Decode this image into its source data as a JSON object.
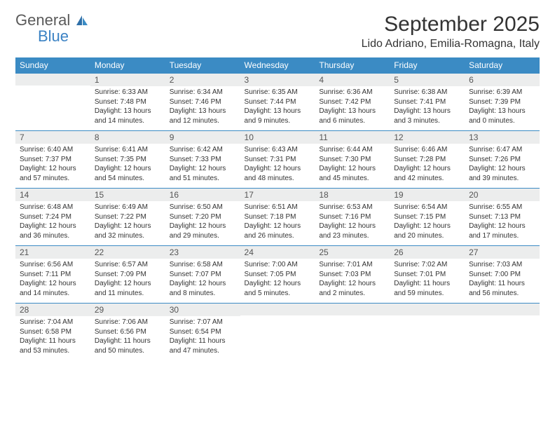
{
  "logo": {
    "general": "General",
    "blue": "Blue"
  },
  "title": "September 2025",
  "location": "Lido Adriano, Emilia-Romagna, Italy",
  "colors": {
    "header_bg": "#3b8bc4",
    "header_text": "#ffffff",
    "daynum_bg": "#eceded",
    "border_top": "#3b8bc4",
    "body_text": "#333333",
    "logo_blue": "#3b82c4",
    "logo_gray": "#5a5a5a"
  },
  "columns": [
    "Sunday",
    "Monday",
    "Tuesday",
    "Wednesday",
    "Thursday",
    "Friday",
    "Saturday"
  ],
  "weeks": [
    [
      {
        "n": "",
        "sr": "",
        "ss": "",
        "dl": ""
      },
      {
        "n": "1",
        "sr": "Sunrise: 6:33 AM",
        "ss": "Sunset: 7:48 PM",
        "dl": "Daylight: 13 hours and 14 minutes."
      },
      {
        "n": "2",
        "sr": "Sunrise: 6:34 AM",
        "ss": "Sunset: 7:46 PM",
        "dl": "Daylight: 13 hours and 12 minutes."
      },
      {
        "n": "3",
        "sr": "Sunrise: 6:35 AM",
        "ss": "Sunset: 7:44 PM",
        "dl": "Daylight: 13 hours and 9 minutes."
      },
      {
        "n": "4",
        "sr": "Sunrise: 6:36 AM",
        "ss": "Sunset: 7:42 PM",
        "dl": "Daylight: 13 hours and 6 minutes."
      },
      {
        "n": "5",
        "sr": "Sunrise: 6:38 AM",
        "ss": "Sunset: 7:41 PM",
        "dl": "Daylight: 13 hours and 3 minutes."
      },
      {
        "n": "6",
        "sr": "Sunrise: 6:39 AM",
        "ss": "Sunset: 7:39 PM",
        "dl": "Daylight: 13 hours and 0 minutes."
      }
    ],
    [
      {
        "n": "7",
        "sr": "Sunrise: 6:40 AM",
        "ss": "Sunset: 7:37 PM",
        "dl": "Daylight: 12 hours and 57 minutes."
      },
      {
        "n": "8",
        "sr": "Sunrise: 6:41 AM",
        "ss": "Sunset: 7:35 PM",
        "dl": "Daylight: 12 hours and 54 minutes."
      },
      {
        "n": "9",
        "sr": "Sunrise: 6:42 AM",
        "ss": "Sunset: 7:33 PM",
        "dl": "Daylight: 12 hours and 51 minutes."
      },
      {
        "n": "10",
        "sr": "Sunrise: 6:43 AM",
        "ss": "Sunset: 7:31 PM",
        "dl": "Daylight: 12 hours and 48 minutes."
      },
      {
        "n": "11",
        "sr": "Sunrise: 6:44 AM",
        "ss": "Sunset: 7:30 PM",
        "dl": "Daylight: 12 hours and 45 minutes."
      },
      {
        "n": "12",
        "sr": "Sunrise: 6:46 AM",
        "ss": "Sunset: 7:28 PM",
        "dl": "Daylight: 12 hours and 42 minutes."
      },
      {
        "n": "13",
        "sr": "Sunrise: 6:47 AM",
        "ss": "Sunset: 7:26 PM",
        "dl": "Daylight: 12 hours and 39 minutes."
      }
    ],
    [
      {
        "n": "14",
        "sr": "Sunrise: 6:48 AM",
        "ss": "Sunset: 7:24 PM",
        "dl": "Daylight: 12 hours and 36 minutes."
      },
      {
        "n": "15",
        "sr": "Sunrise: 6:49 AM",
        "ss": "Sunset: 7:22 PM",
        "dl": "Daylight: 12 hours and 32 minutes."
      },
      {
        "n": "16",
        "sr": "Sunrise: 6:50 AM",
        "ss": "Sunset: 7:20 PM",
        "dl": "Daylight: 12 hours and 29 minutes."
      },
      {
        "n": "17",
        "sr": "Sunrise: 6:51 AM",
        "ss": "Sunset: 7:18 PM",
        "dl": "Daylight: 12 hours and 26 minutes."
      },
      {
        "n": "18",
        "sr": "Sunrise: 6:53 AM",
        "ss": "Sunset: 7:16 PM",
        "dl": "Daylight: 12 hours and 23 minutes."
      },
      {
        "n": "19",
        "sr": "Sunrise: 6:54 AM",
        "ss": "Sunset: 7:15 PM",
        "dl": "Daylight: 12 hours and 20 minutes."
      },
      {
        "n": "20",
        "sr": "Sunrise: 6:55 AM",
        "ss": "Sunset: 7:13 PM",
        "dl": "Daylight: 12 hours and 17 minutes."
      }
    ],
    [
      {
        "n": "21",
        "sr": "Sunrise: 6:56 AM",
        "ss": "Sunset: 7:11 PM",
        "dl": "Daylight: 12 hours and 14 minutes."
      },
      {
        "n": "22",
        "sr": "Sunrise: 6:57 AM",
        "ss": "Sunset: 7:09 PM",
        "dl": "Daylight: 12 hours and 11 minutes."
      },
      {
        "n": "23",
        "sr": "Sunrise: 6:58 AM",
        "ss": "Sunset: 7:07 PM",
        "dl": "Daylight: 12 hours and 8 minutes."
      },
      {
        "n": "24",
        "sr": "Sunrise: 7:00 AM",
        "ss": "Sunset: 7:05 PM",
        "dl": "Daylight: 12 hours and 5 minutes."
      },
      {
        "n": "25",
        "sr": "Sunrise: 7:01 AM",
        "ss": "Sunset: 7:03 PM",
        "dl": "Daylight: 12 hours and 2 minutes."
      },
      {
        "n": "26",
        "sr": "Sunrise: 7:02 AM",
        "ss": "Sunset: 7:01 PM",
        "dl": "Daylight: 11 hours and 59 minutes."
      },
      {
        "n": "27",
        "sr": "Sunrise: 7:03 AM",
        "ss": "Sunset: 7:00 PM",
        "dl": "Daylight: 11 hours and 56 minutes."
      }
    ],
    [
      {
        "n": "28",
        "sr": "Sunrise: 7:04 AM",
        "ss": "Sunset: 6:58 PM",
        "dl": "Daylight: 11 hours and 53 minutes."
      },
      {
        "n": "29",
        "sr": "Sunrise: 7:06 AM",
        "ss": "Sunset: 6:56 PM",
        "dl": "Daylight: 11 hours and 50 minutes."
      },
      {
        "n": "30",
        "sr": "Sunrise: 7:07 AM",
        "ss": "Sunset: 6:54 PM",
        "dl": "Daylight: 11 hours and 47 minutes."
      },
      {
        "n": "",
        "sr": "",
        "ss": "",
        "dl": ""
      },
      {
        "n": "",
        "sr": "",
        "ss": "",
        "dl": ""
      },
      {
        "n": "",
        "sr": "",
        "ss": "",
        "dl": ""
      },
      {
        "n": "",
        "sr": "",
        "ss": "",
        "dl": ""
      }
    ]
  ]
}
